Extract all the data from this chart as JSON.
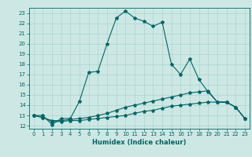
{
  "xlabel": "Humidex (Indice chaleur)",
  "ylabel": "",
  "background_color": "#cde8e4",
  "grid_color": "#aad4cc",
  "line_color": "#006666",
  "xlim": [
    -0.5,
    23.5
  ],
  "ylim": [
    11.7,
    23.5
  ],
  "xticks": [
    0,
    1,
    2,
    3,
    4,
    5,
    6,
    7,
    8,
    9,
    10,
    11,
    12,
    13,
    14,
    15,
    16,
    17,
    18,
    19,
    20,
    21,
    22,
    23
  ],
  "yticks": [
    12,
    13,
    14,
    15,
    16,
    17,
    18,
    19,
    20,
    21,
    22,
    23
  ],
  "line1_x": [
    0,
    1,
    2,
    3,
    4,
    5,
    6,
    7,
    8,
    9,
    10,
    11,
    12,
    13,
    14,
    15,
    16,
    17,
    18,
    19,
    20,
    21,
    22,
    23
  ],
  "line1_y": [
    13.0,
    13.0,
    12.1,
    12.7,
    12.7,
    14.4,
    17.2,
    17.3,
    20.0,
    22.5,
    23.2,
    22.5,
    22.2,
    21.7,
    22.1,
    18.0,
    17.0,
    18.5,
    16.5,
    15.3,
    14.3,
    14.3,
    13.8,
    12.7
  ],
  "line2_x": [
    0,
    1,
    2,
    3,
    4,
    5,
    6,
    7,
    8,
    9,
    10,
    11,
    12,
    13,
    14,
    15,
    16,
    17,
    18,
    19,
    20,
    21,
    22,
    23
  ],
  "line2_y": [
    13.0,
    12.8,
    12.5,
    12.5,
    12.6,
    12.7,
    12.8,
    13.0,
    13.2,
    13.5,
    13.8,
    14.0,
    14.2,
    14.4,
    14.6,
    14.8,
    15.0,
    15.2,
    15.3,
    15.4,
    14.3,
    14.3,
    13.8,
    12.7
  ],
  "line3_x": [
    0,
    1,
    2,
    3,
    4,
    5,
    6,
    7,
    8,
    9,
    10,
    11,
    12,
    13,
    14,
    15,
    16,
    17,
    18,
    19,
    20,
    21,
    22,
    23
  ],
  "line3_y": [
    13.0,
    12.8,
    12.4,
    12.4,
    12.5,
    12.5,
    12.6,
    12.7,
    12.8,
    12.9,
    13.0,
    13.2,
    13.4,
    13.5,
    13.7,
    13.9,
    14.0,
    14.1,
    14.2,
    14.3,
    14.3,
    14.3,
    13.8,
    12.7
  ],
  "marker": "*",
  "markersize": 3,
  "linewidth": 0.8,
  "tick_fontsize": 5.0,
  "label_fontsize": 6.0
}
